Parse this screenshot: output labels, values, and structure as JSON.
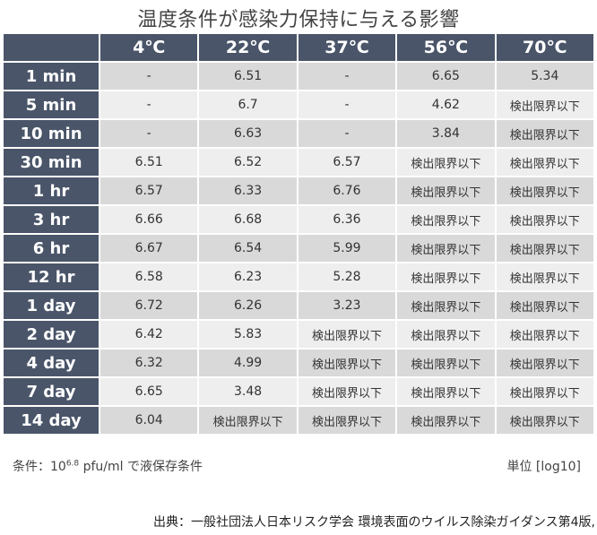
{
  "chart_data": {
    "type": "table",
    "title": "温度条件が感染力保持に与える影響",
    "columns": [
      "4℃",
      "22℃",
      "37℃",
      "56℃",
      "70℃"
    ],
    "rows": [
      {
        "label": "1 min",
        "values": [
          "-",
          "6.51",
          "-",
          "6.65",
          "5.34"
        ]
      },
      {
        "label": "5 min",
        "values": [
          "-",
          "6.7",
          "-",
          "4.62",
          "検出限界以下"
        ]
      },
      {
        "label": "10 min",
        "values": [
          "-",
          "6.63",
          "-",
          "3.84",
          "検出限界以下"
        ]
      },
      {
        "label": "30 min",
        "values": [
          "6.51",
          "6.52",
          "6.57",
          "検出限界以下",
          "検出限界以下"
        ]
      },
      {
        "label": "1 hr",
        "values": [
          "6.57",
          "6.33",
          "6.76",
          "検出限界以下",
          "検出限界以下"
        ]
      },
      {
        "label": "3 hr",
        "values": [
          "6.66",
          "6.68",
          "6.36",
          "検出限界以下",
          "検出限界以下"
        ]
      },
      {
        "label": "6 hr",
        "values": [
          "6.67",
          "6.54",
          "5.99",
          "検出限界以下",
          "検出限界以下"
        ]
      },
      {
        "label": "12 hr",
        "values": [
          "6.58",
          "6.23",
          "5.28",
          "検出限界以下",
          "検出限界以下"
        ]
      },
      {
        "label": "1 day",
        "values": [
          "6.72",
          "6.26",
          "3.23",
          "検出限界以下",
          "検出限界以下"
        ]
      },
      {
        "label": "2 day",
        "values": [
          "6.42",
          "5.83",
          "検出限界以下",
          "検出限界以下",
          "検出限界以下"
        ]
      },
      {
        "label": "4 day",
        "values": [
          "6.32",
          "4.99",
          "検出限界以下",
          "検出限界以下",
          "検出限界以下"
        ]
      },
      {
        "label": "7 day",
        "values": [
          "6.65",
          "3.48",
          "検出限界以下",
          "検出限界以下",
          "検出限界以下"
        ]
      },
      {
        "label": "14 day",
        "values": [
          "6.04",
          "検出限界以下",
          "検出限界以下",
          "検出限界以下",
          "検出限界以下"
        ]
      }
    ]
  },
  "notes": {
    "condition_prefix": "条件：10",
    "condition_exponent": "6.8",
    "condition_suffix": " pfu/ml で液保存条件",
    "unit": "単位 [log10]",
    "source": "出典：一般社団法人日本リスク学会 環境表面のウイルス除染ガイダンス第4版,"
  }
}
